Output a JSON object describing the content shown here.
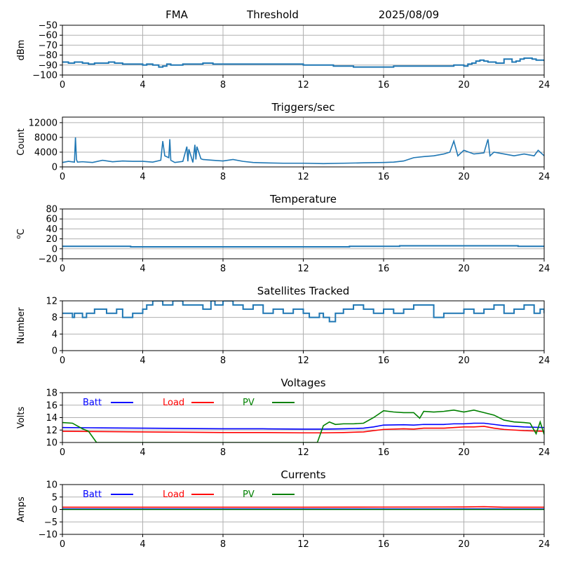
{
  "header": {
    "station": "FMA",
    "mode": "Threshold",
    "date": "2025/08/09"
  },
  "chart_data": [
    {
      "type": "line",
      "title": "",
      "xlabel": "",
      "ylabel": "dBm",
      "xlim": [
        0,
        24
      ],
      "ylim": [
        -100,
        -50
      ],
      "xticks": [
        0,
        4,
        8,
        12,
        16,
        20,
        24
      ],
      "yticks": [
        -100,
        -90,
        -80,
        -70,
        -60,
        -50
      ],
      "grid": true,
      "series": [
        {
          "color": "#1f77b4",
          "step": true,
          "x": [
            0,
            0.3,
            0.6,
            1.0,
            1.3,
            1.6,
            2.0,
            2.3,
            2.6,
            3.0,
            3.4,
            3.8,
            4.0,
            4.2,
            4.5,
            4.8,
            5.0,
            5.2,
            5.4,
            5.7,
            6.0,
            6.5,
            7.0,
            7.5,
            8.0,
            9.0,
            10.0,
            11.0,
            12.0,
            12.5,
            13.0,
            13.5,
            14.0,
            14.5,
            15.0,
            15.5,
            16.0,
            16.5,
            17.0,
            17.5,
            18.0,
            18.5,
            19.0,
            19.5,
            20.0,
            20.2,
            20.4,
            20.6,
            20.8,
            21.0,
            21.2,
            21.4,
            21.6,
            21.8,
            22.0,
            22.2,
            22.4,
            22.6,
            22.8,
            23.0,
            23.2,
            23.4,
            23.6,
            23.8,
            24.0
          ],
          "y": [
            -87,
            -88,
            -87,
            -88,
            -89,
            -88,
            -88,
            -87,
            -88,
            -89,
            -89,
            -89,
            -90,
            -89,
            -90,
            -92,
            -91,
            -89,
            -90,
            -90,
            -89,
            -89,
            -88,
            -89,
            -89,
            -89,
            -89,
            -89,
            -90,
            -90,
            -90,
            -91,
            -91,
            -92,
            -92,
            -92,
            -92,
            -91,
            -91,
            -91,
            -91,
            -91,
            -91,
            -90,
            -91,
            -89,
            -88,
            -86,
            -85,
            -86,
            -87,
            -87,
            -88,
            -88,
            -84,
            -84,
            -87,
            -86,
            -84,
            -83,
            -83,
            -84,
            -85,
            -85,
            -86
          ]
        }
      ]
    },
    {
      "type": "line",
      "title": "Triggers/sec",
      "xlabel": "",
      "ylabel": "Count",
      "xlim": [
        0,
        24
      ],
      "ylim": [
        0,
        13500
      ],
      "xticks": [
        0,
        4,
        8,
        12,
        16,
        20,
        24
      ],
      "yticks": [
        0,
        4000,
        8000,
        12000
      ],
      "grid": true,
      "series": [
        {
          "color": "#1f77b4",
          "step": false,
          "x": [
            0,
            0.3,
            0.6,
            0.65,
            0.7,
            0.75,
            1.0,
            1.5,
            2.0,
            2.5,
            3.0,
            3.5,
            4.0,
            4.5,
            4.9,
            5.0,
            5.1,
            5.3,
            5.35,
            5.4,
            5.6,
            6.0,
            6.2,
            6.25,
            6.3,
            6.5,
            6.6,
            6.65,
            6.7,
            6.9,
            7.0,
            7.5,
            8.0,
            8.5,
            9.0,
            9.5,
            10.0,
            11.0,
            12.0,
            13.0,
            14.0,
            15.0,
            16.0,
            16.5,
            17.0,
            17.5,
            18.0,
            18.5,
            19.0,
            19.3,
            19.5,
            19.7,
            20.0,
            20.5,
            21.0,
            21.2,
            21.3,
            21.5,
            22.0,
            22.5,
            23.0,
            23.5,
            23.7,
            24.0
          ],
          "y": [
            1200,
            1500,
            1300,
            8000,
            2000,
            1300,
            1400,
            1200,
            1800,
            1400,
            1600,
            1500,
            1500,
            1300,
            1800,
            7000,
            3000,
            2500,
            7500,
            1800,
            1200,
            1500,
            5500,
            1500,
            4800,
            1200,
            6000,
            2000,
            5500,
            2200,
            2000,
            1800,
            1600,
            2000,
            1500,
            1200,
            1100,
            1000,
            1000,
            900,
            1000,
            1100,
            1200,
            1300,
            1600,
            2500,
            2800,
            3000,
            3500,
            4000,
            7000,
            3000,
            4500,
            3500,
            3800,
            7500,
            3000,
            4000,
            3500,
            3000,
            3500,
            3000,
            4500,
            3000
          ]
        }
      ]
    },
    {
      "type": "line",
      "title": "Temperature",
      "xlabel": "",
      "ylabel": "oC",
      "xlim": [
        0,
        24
      ],
      "ylim": [
        -20,
        80
      ],
      "xticks": [
        0,
        4,
        8,
        12,
        16,
        20,
        24
      ],
      "yticks": [
        -20,
        0,
        20,
        40,
        60,
        80
      ],
      "grid": true,
      "series": [
        {
          "color": "#1f77b4",
          "step": true,
          "x": [
            0,
            3.4,
            14.3,
            16.8,
            22.7,
            24
          ],
          "y": [
            5,
            4,
            5,
            6,
            5,
            5
          ]
        }
      ]
    },
    {
      "type": "line",
      "title": "Satellites Tracked",
      "xlabel": "",
      "ylabel": "Number",
      "xlim": [
        0,
        24
      ],
      "ylim": [
        0,
        12
      ],
      "xticks": [
        0,
        4,
        8,
        12,
        16,
        20,
        24
      ],
      "yticks": [
        0,
        4,
        8,
        12
      ],
      "grid": true,
      "series": [
        {
          "color": "#1f77b4",
          "step": true,
          "x": [
            0,
            0.5,
            0.6,
            1.0,
            1.2,
            1.6,
            2.2,
            2.7,
            3.0,
            3.5,
            4.0,
            4.2,
            4.5,
            5.0,
            5.5,
            6.0,
            7.0,
            7.4,
            7.6,
            8.0,
            8.5,
            9.0,
            9.5,
            10.0,
            10.5,
            11.0,
            11.5,
            12.0,
            12.3,
            12.8,
            13.0,
            13.3,
            13.6,
            14.0,
            14.5,
            15.0,
            15.5,
            16.0,
            16.5,
            17.0,
            17.5,
            18.5,
            19.0,
            20.0,
            20.5,
            21.0,
            21.5,
            22.0,
            22.5,
            23.0,
            23.5,
            23.8,
            24.0
          ],
          "y": [
            9,
            8,
            9,
            8,
            9,
            10,
            9,
            10,
            8,
            9,
            10,
            11,
            12,
            11,
            12,
            11,
            10,
            12,
            11,
            12,
            11,
            10,
            11,
            9,
            10,
            9,
            10,
            9,
            8,
            9,
            8,
            7,
            9,
            10,
            11,
            10,
            9,
            10,
            9,
            10,
            11,
            8,
            9,
            10,
            9,
            10,
            11,
            9,
            10,
            11,
            9,
            10,
            9
          ]
        }
      ]
    },
    {
      "type": "line",
      "title": "Voltages",
      "xlabel": "",
      "ylabel": "Volts",
      "xlim": [
        0,
        24
      ],
      "ylim": [
        10,
        18
      ],
      "xticks": [
        0,
        4,
        8,
        12,
        16,
        20,
        24
      ],
      "yticks": [
        10,
        12,
        14,
        16,
        18
      ],
      "grid": true,
      "legend": "top-left",
      "series": [
        {
          "name": "Batt",
          "color": "#0000ff",
          "step": false,
          "x": [
            0,
            2,
            4,
            6,
            8,
            10,
            12,
            13,
            14,
            15,
            15.5,
            16,
            17,
            17.5,
            18,
            19,
            19.5,
            20,
            20.5,
            21,
            21.5,
            22,
            23,
            24
          ],
          "y": [
            12.4,
            12.35,
            12.3,
            12.25,
            12.2,
            12.2,
            12.15,
            12.15,
            12.2,
            12.3,
            12.5,
            12.8,
            12.85,
            12.8,
            12.9,
            12.9,
            13.0,
            13.0,
            13.1,
            13.1,
            12.9,
            12.7,
            12.5,
            12.4
          ]
        },
        {
          "name": "Load",
          "color": "#ff0000",
          "step": false,
          "x": [
            0,
            2,
            4,
            6,
            8,
            10,
            12,
            13,
            14,
            15,
            15.5,
            16,
            17,
            17.5,
            18,
            19,
            19.5,
            20,
            20.5,
            21,
            21.5,
            22,
            23,
            24
          ],
          "y": [
            11.8,
            11.75,
            11.7,
            11.65,
            11.6,
            11.6,
            11.55,
            11.55,
            11.6,
            11.7,
            11.9,
            12.1,
            12.2,
            12.15,
            12.3,
            12.3,
            12.4,
            12.5,
            12.5,
            12.6,
            12.3,
            12.1,
            11.9,
            11.8
          ]
        },
        {
          "name": "PV",
          "color": "#008000",
          "step": false,
          "x": [
            0,
            0.5,
            1.0,
            1.3,
            1.7,
            12.7,
            13.0,
            13.3,
            13.6,
            14.0,
            14.5,
            15.0,
            15.5,
            16.0,
            16.5,
            17.0,
            17.5,
            17.8,
            18.0,
            18.5,
            19.0,
            19.5,
            20.0,
            20.5,
            21.0,
            21.5,
            22.0,
            22.5,
            23.0,
            23.3,
            23.6,
            23.8,
            24.0
          ],
          "y": [
            13.2,
            13.1,
            12.2,
            11.8,
            10.0,
            10.0,
            12.7,
            13.3,
            12.9,
            13.0,
            13.0,
            13.1,
            14.0,
            15.1,
            14.9,
            14.8,
            14.8,
            13.9,
            15.0,
            14.9,
            15.0,
            15.2,
            14.9,
            15.2,
            14.8,
            14.4,
            13.6,
            13.3,
            13.2,
            13.1,
            11.4,
            13.3,
            11.3
          ]
        }
      ]
    },
    {
      "type": "line",
      "title": "Currents",
      "xlabel": "",
      "ylabel": "Amps",
      "xlim": [
        0,
        24
      ],
      "ylim": [
        -10,
        10
      ],
      "xticks": [
        0,
        4,
        8,
        12,
        16,
        20,
        24
      ],
      "yticks": [
        -10,
        -5,
        0,
        5,
        10
      ],
      "grid": true,
      "legend": "top-left",
      "series": [
        {
          "name": "Batt",
          "color": "#0000ff",
          "step": false,
          "x": [
            0,
            24
          ],
          "y": [
            0.2,
            0.2
          ]
        },
        {
          "name": "Load",
          "color": "#ff0000",
          "step": false,
          "x": [
            0,
            4,
            8,
            12,
            16,
            20,
            21,
            22,
            24
          ],
          "y": [
            0.9,
            0.9,
            0.9,
            0.9,
            0.95,
            1.0,
            1.1,
            0.9,
            0.9
          ]
        },
        {
          "name": "PV",
          "color": "#008000",
          "step": false,
          "x": [
            0,
            24
          ],
          "y": [
            0.0,
            0.0
          ]
        }
      ]
    }
  ]
}
